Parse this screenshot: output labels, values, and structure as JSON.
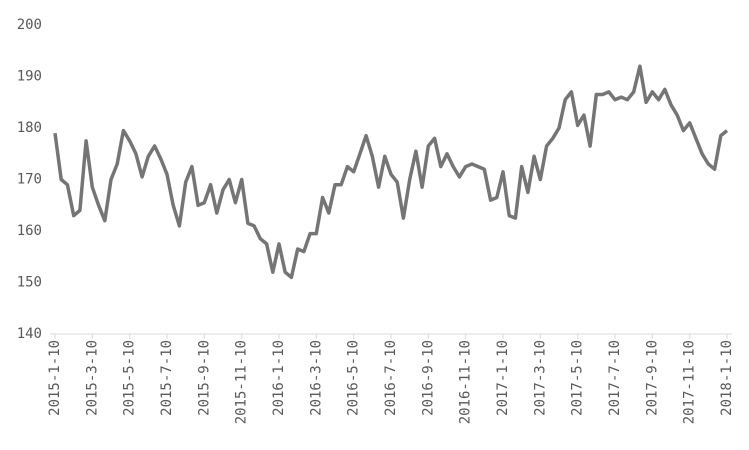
{
  "chart_data": {
    "type": "line",
    "categories": [
      "2015-1-10",
      null,
      null,
      null,
      null,
      null,
      "2015-3-10",
      null,
      null,
      null,
      null,
      null,
      "2015-5-10",
      null,
      null,
      null,
      null,
      null,
      "2015-7-10",
      null,
      null,
      null,
      null,
      null,
      "2015-9-10",
      null,
      null,
      null,
      null,
      null,
      "2015-11-10",
      null,
      null,
      null,
      null,
      null,
      "2016-1-10",
      null,
      null,
      null,
      null,
      null,
      "2016-3-10",
      null,
      null,
      null,
      null,
      null,
      "2016-5-10",
      null,
      null,
      null,
      null,
      null,
      "2016-7-10",
      null,
      null,
      null,
      null,
      null,
      "2016-9-10",
      null,
      null,
      null,
      null,
      null,
      "2016-11-10",
      null,
      null,
      null,
      null,
      null,
      "2017-1-10",
      null,
      null,
      null,
      null,
      null,
      "2017-3-10",
      null,
      null,
      null,
      null,
      null,
      "2017-5-10",
      null,
      null,
      null,
      null,
      null,
      "2017-7-10",
      null,
      null,
      null,
      null,
      null,
      "2017-9-10",
      null,
      null,
      null,
      null,
      null,
      "2017-11-10",
      null,
      null,
      null,
      null,
      null,
      "2018-1-10"
    ],
    "series": [
      {
        "color": "#757575",
        "values": [
          179,
          170,
          169,
          163,
          164,
          177.5,
          168.5,
          165,
          162,
          170,
          173,
          179.5,
          177.5,
          175,
          170.5,
          174.5,
          176.5,
          174,
          171,
          165,
          161,
          169.5,
          172.5,
          165,
          165.5,
          169,
          163.5,
          168,
          170,
          165.5,
          170,
          161.5,
          161,
          158.5,
          157.5,
          152,
          157.5,
          152,
          151,
          156.5,
          156,
          159.5,
          159.5,
          166.5,
          163.5,
          169,
          169,
          172.5,
          171.5,
          175,
          178.5,
          174.5,
          168.5,
          174.5,
          171,
          169.5,
          162.5,
          170,
          175.5,
          168.5,
          176.5,
          178,
          172.5,
          175,
          172.5,
          170.5,
          172.5,
          173,
          172.5,
          172,
          166,
          166.5,
          171.5,
          163,
          162.5,
          172.5,
          167.5,
          174.5,
          170,
          176.5,
          178,
          180,
          185.5,
          187,
          180.5,
          182.5,
          176.5,
          186.5,
          186.5,
          187,
          185.5,
          186,
          185.5,
          187,
          192,
          185,
          187,
          185.5,
          187.5,
          184.5,
          182.5,
          179.5,
          181,
          178,
          175,
          173,
          172,
          178.5,
          179.5
        ]
      }
    ],
    "ylim": [
      140,
      200
    ],
    "yticks": [
      140,
      150,
      160,
      170,
      180,
      190,
      200
    ]
  }
}
